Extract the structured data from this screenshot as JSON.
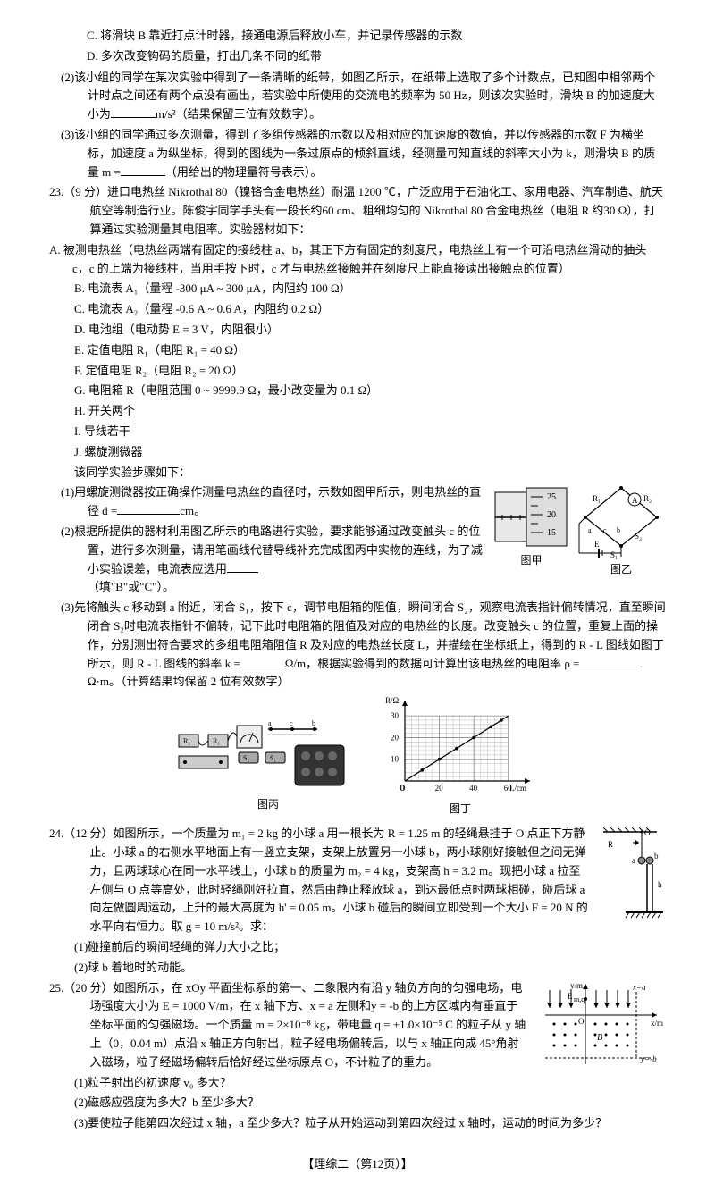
{
  "q22_C": "C. 将滑块 B 靠近打点计时器，接通电源后释放小车，并记录传感器的示数",
  "q22_D": "D. 多次改变钩码的质量，打出几条不同的纸带",
  "q22_2": "(2)该小组的同学在某次实验中得到了一条清晰的纸带，如图乙所示，在纸带上选取了多个计数点，已知图中相邻两个计时点之间还有两个点没有画出，若实验中所使用的交流电的频率为 50 Hz，则该次实验时，滑块 B 的加速度大小为",
  "q22_2_unit": "m/s²（结果保留三位有效数字）。",
  "q22_3": "(3)该小组的同学通过多次测量，得到了多组传感器的示数以及相对应的加速度的数值，并以传感器的示数 F 为横坐标，加速度 a 为纵坐标，得到的图线为一条过原点的倾斜直线，经测量可知直线的斜率大小为 k，则滑块 B 的质量 m =",
  "q22_3_tail": "（用给出的物理量符号表示）。",
  "q23_stem": "23.（9 分）进口电热丝 Nikrothal 80（镍铬合金电热丝）耐温 1200 ℃，广泛应用于石油化工、家用电器、汽车制造、航天航空等制造行业。陈俊宇同学手头有一段长约60 cm、粗细均匀的 Nikrothal 80 合金电热丝（电阻 R 约30 Ω），打算通过实验测量其电阻率。实验器材如下：",
  "q23_A": "A. 被测电热丝（电热丝两端有固定的接线柱 a、b，其正下方有固定的刻度尺，电热丝上有一个可沿电热丝滑动的抽头 c，c 的上端为接线柱，当用手按下时，c 才与电热丝接触并在刻度尺上能直接读出接触点的位置）",
  "q23_B": "B. 电流表 A₁（量程 -300 μA ~ 300 μA，内阻约 100 Ω）",
  "q23_C": "C. 电流表 A₂（量程 -0.6 A ~ 0.6 A，内阻约 0.2 Ω）",
  "q23_D": "D. 电池组（电动势 E = 3 V，内阻很小）",
  "q23_E": "E. 定值电阻 R₁（电阻 R₁ = 40 Ω）",
  "q23_F": "F. 定值电阻 R₂（电阻 R₂ = 20 Ω）",
  "q23_G": "G. 电阻箱 R（电阻范围 0 ~ 9999.9 Ω，最小改变量为 0.1 Ω）",
  "q23_H": "H. 开关两个",
  "q23_I": "I. 导线若干",
  "q23_J": "J. 螺旋测微器",
  "q23_steps": "该同学实验步骤如下：",
  "q23_1": "(1)用螺旋测微器按正确操作测量电热丝的直径时，示数如图甲所示，则电热丝的直径 d =",
  "q23_1_unit": "cm。",
  "q23_2": "(2)根据所提供的器材利用图乙所示的电路进行实验，要求能够通过改变触头 c 的位置，进行多次测量，请用笔画线代替导线补充完成图丙中实物的连线，为了减小实验误差，电流表应选用",
  "q23_2_tail": "（填\"B\"或\"C\"）。",
  "q23_fig1": "图甲",
  "q23_fig2": "图乙",
  "q23_3": "(3)先将触头 c 移动到 a 附近，闭合 S₁，按下 c，调节电阻箱的阻值，瞬间闭合 S₂，观察电流表指针偏转情况，直至瞬间闭合 S₂时电流表指针不偏转，记下此时电阻箱的阻值及对应的电热丝的长度。改变触头 c 的位置，重复上面的操作，分别测出符合要求的多组电阻箱阻值 R 及对应的电热丝长度 L，并描绘在坐标纸上，得到的 R - L 图线如图丁所示，则 R - L 图线的斜率 k =",
  "q23_3_unit1": "Ω/m，根据实验得到的数据可计算出该电热丝的电阻率 ρ =",
  "q23_3_unit2": "Ω·m。（计算结果均保留 2 位有效数字）",
  "q23_fig3": "图丙",
  "q23_fig4": "图丁",
  "q24_stem": "24.（12 分）如图所示，一个质量为 m₁ = 2 kg 的小球 a 用一根长为 R = 1.25 m 的轻绳悬挂于 O 点正下方静止。小球 a 的右侧水平地面上有一竖立支架，支架上放置另一小球 b，两小球刚好接触但之间无弹力，且两球球心在同一水平线上，小球 b 的质量为 m₂ = 4 kg，支架高 h = 3.2 m。现把小球 a 拉至左侧与 O 点等高处，此时轻绳刚好拉直，然后由静止释放球 a，到达最低点时两球相碰，碰后球 a 向左做圆周运动，上升的最大高度为 h' = 0.05 m。小球 b 碰后的瞬间立即受到一个大小 F = 20 N 的水平向右恒力。取 g = 10 m/s²。求：",
  "q24_1": "(1)碰撞前后的瞬间轻绳的弹力大小之比；",
  "q24_2": "(2)球 b 着地时的动能。",
  "q25_stem": "25.（20 分）如图所示，在 xOy 平面坐标系的第一、二象限内有沿 y 轴负方向的匀强电场，电场强度大小为 E = 1000 V/m，在 x 轴下方、x = a 左侧和y = -b 的上方区域内有垂直于坐标平面的匀强磁场。一个质量 m = 2×10⁻⁸ kg，带电量 q = +1.0×10⁻⁵ C 的粒子从 y 轴上（0，0.04 m）点沿 x 轴正方向射出，粒子经电场偏转后，以与 x 轴正向成 45°角射入磁场，粒子经磁场偏转后恰好经过坐标原点 O，不计粒子的重力。",
  "q25_1": "(1)粒子射出的初速度 v₀ 多大？",
  "q25_2": "(2)磁感应强度为多大？b 至少多大？",
  "q25_3": "(3)要使粒子能第四次经过 x 轴，a 至少多大？粒子从开始运动到第四次经过 x 轴时，运动的时间为多少？",
  "footer": "【理综二（第12页）】",
  "chart_ding": {
    "x_label": "L/cm",
    "y_label": "R/Ω",
    "x_ticks": [
      0,
      20,
      40,
      60
    ],
    "y_ticks": [
      0,
      10,
      20,
      30
    ],
    "points": [
      [
        10,
        5
      ],
      [
        20,
        10
      ],
      [
        30,
        15
      ],
      [
        40,
        20
      ],
      [
        50,
        25
      ],
      [
        56,
        28
      ]
    ],
    "grid_color": "#888",
    "bg": "#ffffff"
  },
  "micrometer": {
    "scale_marks": [
      15,
      20,
      25
    ]
  }
}
